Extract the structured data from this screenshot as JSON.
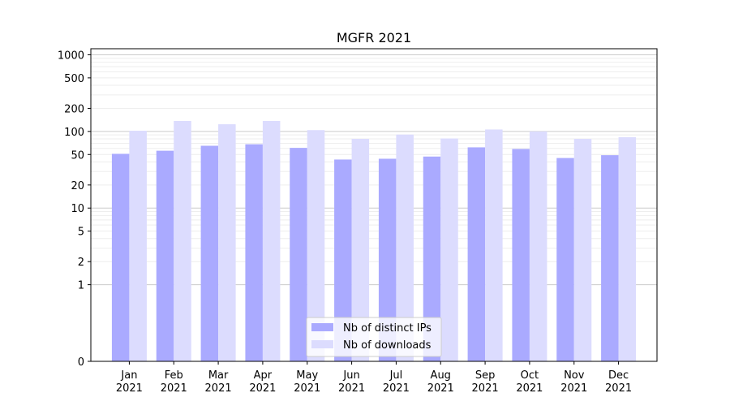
{
  "chart_data": {
    "type": "bar",
    "title": "MGFR 2021",
    "categories": [
      {
        "month": "Jan",
        "year": "2021"
      },
      {
        "month": "Feb",
        "year": "2021"
      },
      {
        "month": "Mar",
        "year": "2021"
      },
      {
        "month": "Apr",
        "year": "2021"
      },
      {
        "month": "May",
        "year": "2021"
      },
      {
        "month": "Jun",
        "year": "2021"
      },
      {
        "month": "Jul",
        "year": "2021"
      },
      {
        "month": "Aug",
        "year": "2021"
      },
      {
        "month": "Sep",
        "year": "2021"
      },
      {
        "month": "Oct",
        "year": "2021"
      },
      {
        "month": "Nov",
        "year": "2021"
      },
      {
        "month": "Dec",
        "year": "2021"
      }
    ],
    "series": [
      {
        "name": "Nb of distinct IPs",
        "color": "#aaaaff",
        "values": [
          51,
          56,
          65,
          68,
          61,
          43,
          44,
          47,
          62,
          59,
          45,
          49
        ]
      },
      {
        "name": "Nb of downloads",
        "color": "#dcdcfe",
        "values": [
          102,
          137,
          124,
          137,
          104,
          80,
          91,
          81,
          106,
          100,
          80,
          84
        ]
      }
    ],
    "y_scale": "symlog",
    "y_ticks": [
      "0",
      "1",
      "2",
      "5",
      "10",
      "20",
      "50",
      "100",
      "200",
      "500",
      "1000"
    ],
    "ylim": [
      0,
      1200
    ],
    "xlabel": "",
    "ylabel": "",
    "grid": true,
    "legend_position": "bottom-center"
  }
}
